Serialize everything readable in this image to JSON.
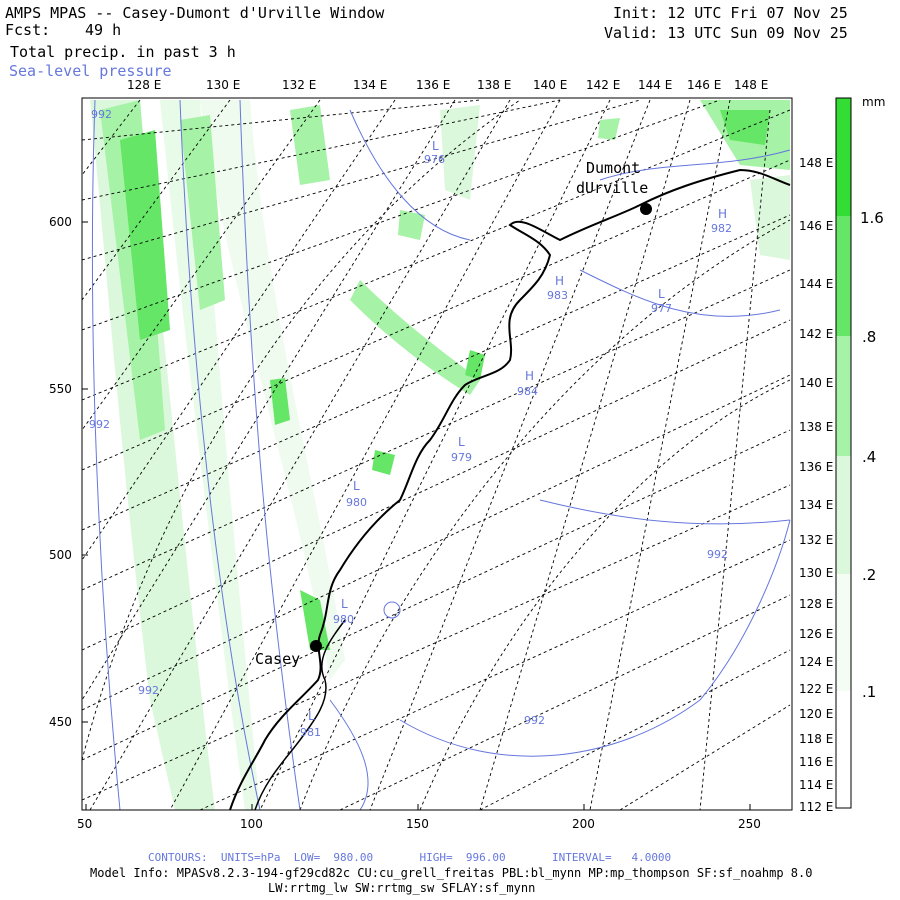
{
  "header": {
    "title": "AMPS MPAS -- Casey-Dumont d'Urville Window",
    "fcst_label": "Fcst:",
    "fcst_value": "49 h",
    "field": "Total precip. in past 3 h",
    "overlay": "Sea-level pressure",
    "init": "Init: 12 UTC Fri 07 Nov 25",
    "valid": "Valid: 13 UTC Sun 09 Nov 25"
  },
  "top_longitudes": [
    "128 E",
    "130 E",
    "132 E",
    "134 E",
    "136 E",
    "138 E",
    "140 E",
    "142 E",
    "144 E",
    "146 E",
    "148 E"
  ],
  "right_longitudes": [
    "148 E",
    "146 E",
    "144 E",
    "142 E",
    "140 E",
    "138 E",
    "136 E",
    "134 E",
    "132 E",
    "130 E",
    "128 E",
    "126 E",
    "124 E",
    "122 E",
    "120 E",
    "118 E",
    "116 E",
    "114 E",
    "112 E"
  ],
  "x_ticks": [
    "50",
    "100",
    "150",
    "200",
    "250"
  ],
  "y_ticks": [
    "600",
    "550",
    "500",
    "450"
  ],
  "colorbar": {
    "unit": "mm",
    "labels": [
      "1.6",
      ".8",
      ".4",
      ".2",
      ".1"
    ],
    "colors": [
      "#33dd33",
      "#66e666",
      "#a6f2a6",
      "#dcf8dc",
      "#f4fcf4"
    ]
  },
  "stations": [
    {
      "name_lines": [
        "Dumont",
        "dUrville"
      ]
    },
    {
      "name_lines": [
        "Casey"
      ]
    }
  ],
  "pressure_centers": [
    {
      "letter": "L",
      "value": "976"
    },
    {
      "letter": "H",
      "value": "982"
    },
    {
      "letter": "H",
      "value": "983"
    },
    {
      "letter": "L",
      "value": "977"
    },
    {
      "letter": "H",
      "value": "984"
    },
    {
      "letter": "L",
      "value": "979"
    },
    {
      "letter": "L",
      "value": "980"
    },
    {
      "letter": "L",
      "value": "980"
    },
    {
      "letter": "L",
      "value": "981"
    }
  ],
  "contour_labels": [
    "992",
    "992",
    "992",
    "992",
    "992"
  ],
  "footer": {
    "contours": "CONTOURS:  UNITS=hPa  LOW=  980.00       HIGH=  996.00       INTERVAL=   4.0000",
    "model_info": "Model Info: MPASv8.2.3-194-gf29cd82c CU:cu_grell_freitas PBL:bl_mynn MP:mp_thompson SF:sf_noahmp 8.0",
    "model_info2": "LW:rrtmg_lw SW:rrtmg_sw SFLAY:sf_mynn"
  }
}
